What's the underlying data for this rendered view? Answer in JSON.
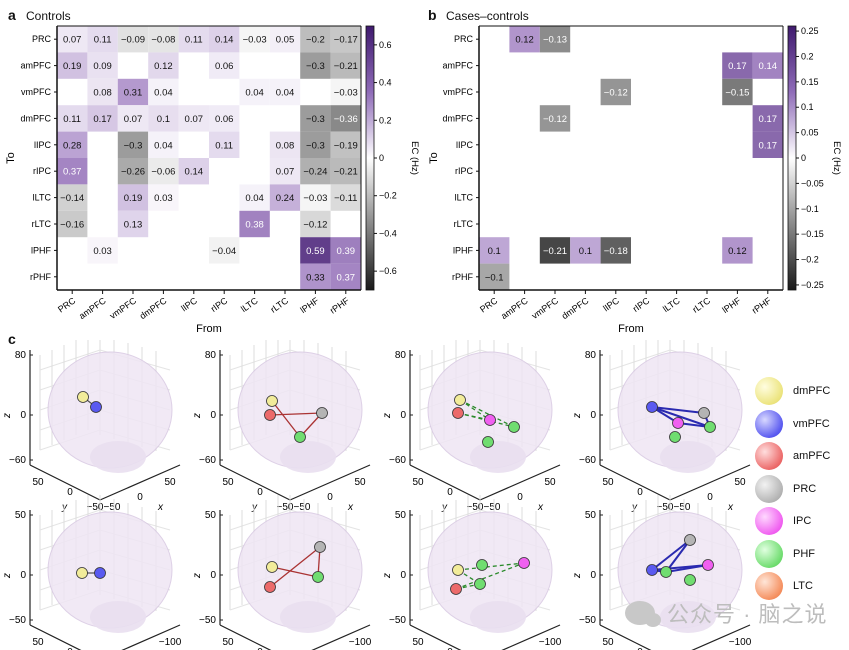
{
  "panels": {
    "a": {
      "letter": "a",
      "title": "Controls"
    },
    "b": {
      "letter": "b",
      "title": "Cases–controls"
    },
    "c": {
      "letter": "c"
    }
  },
  "chart_data": [
    {
      "type": "heatmap",
      "id": "controls",
      "title": "Controls",
      "xlabel": "From",
      "ylabel": "To",
      "rows": [
        "PRC",
        "amPFC",
        "vmPFC",
        "dmPFC",
        "lIPC",
        "rIPC",
        "lLTC",
        "rLTC",
        "lPHF",
        "rPHF"
      ],
      "cols": [
        "PRC",
        "amPFC",
        "vmPFC",
        "dmPFC",
        "lIPC",
        "rIPC",
        "lLTC",
        "rLTC",
        "lPHF",
        "rPHF"
      ],
      "values": [
        [
          0.07,
          0.11,
          -0.09,
          -0.08,
          0.11,
          0.14,
          -0.03,
          0.05,
          -0.2,
          -0.17
        ],
        [
          0.19,
          0.09,
          null,
          0.12,
          null,
          0.06,
          null,
          null,
          -0.3,
          -0.21
        ],
        [
          null,
          0.08,
          0.31,
          0.04,
          null,
          null,
          0.04,
          0.04,
          null,
          -0.03
        ],
        [
          0.11,
          0.17,
          0.07,
          0.1,
          0.07,
          0.06,
          null,
          null,
          -0.3,
          -0.36
        ],
        [
          0.28,
          null,
          -0.3,
          0.04,
          null,
          0.11,
          null,
          0.08,
          -0.3,
          -0.19
        ],
        [
          0.37,
          null,
          -0.26,
          -0.06,
          0.14,
          null,
          null,
          0.07,
          -0.24,
          -0.21
        ],
        [
          -0.14,
          null,
          0.19,
          0.03,
          null,
          null,
          0.04,
          0.24,
          -0.03,
          -0.11
        ],
        [
          -0.16,
          null,
          0.13,
          null,
          null,
          null,
          0.38,
          null,
          -0.12,
          null
        ],
        [
          null,
          0.03,
          null,
          null,
          null,
          -0.04,
          null,
          null,
          0.59,
          0.39
        ],
        [
          null,
          null,
          null,
          null,
          null,
          null,
          null,
          null,
          0.33,
          0.37
        ]
      ],
      "colorbar": {
        "label": "EC (Hz)",
        "range": [
          -0.7,
          0.7
        ],
        "ticks": [
          -0.6,
          -0.4,
          -0.2,
          0,
          0.2,
          0.4,
          0.6
        ],
        "tick_labels": [
          "−0.6",
          "−0.4",
          "−0.2",
          "0",
          "0.2",
          "0.4",
          "0.6"
        ]
      },
      "colors": {
        "positive": "#3f1a6e",
        "negative": "#1a1a1a",
        "zero": "#ffffff"
      }
    },
    {
      "type": "heatmap",
      "id": "cases-controls",
      "title": "Cases–controls",
      "xlabel": "From",
      "ylabel": "To",
      "rows": [
        "PRC",
        "amPFC",
        "vmPFC",
        "dmPFC",
        "lIPC",
        "rIPC",
        "lLTC",
        "rLTC",
        "lPHF",
        "rPHF"
      ],
      "cols": [
        "PRC",
        "amPFC",
        "vmPFC",
        "dmPFC",
        "lIPC",
        "rIPC",
        "lLTC",
        "rLTC",
        "lPHF",
        "rPHF"
      ],
      "values": [
        [
          null,
          0.12,
          -0.13,
          null,
          null,
          null,
          null,
          null,
          null,
          null
        ],
        [
          null,
          null,
          null,
          null,
          null,
          null,
          null,
          null,
          0.17,
          0.14
        ],
        [
          null,
          null,
          null,
          null,
          -0.12,
          null,
          null,
          null,
          -0.15,
          null
        ],
        [
          null,
          null,
          -0.12,
          null,
          null,
          null,
          null,
          null,
          null,
          0.17
        ],
        [
          null,
          null,
          null,
          null,
          null,
          null,
          null,
          null,
          null,
          0.17
        ],
        [
          null,
          null,
          null,
          null,
          null,
          null,
          null,
          null,
          null,
          null
        ],
        [
          null,
          null,
          null,
          null,
          null,
          null,
          null,
          null,
          null,
          null
        ],
        [
          null,
          null,
          null,
          null,
          null,
          null,
          null,
          null,
          null,
          null
        ],
        [
          0.1,
          null,
          -0.21,
          0.1,
          -0.18,
          null,
          null,
          null,
          0.12,
          null
        ],
        [
          -0.1,
          null,
          null,
          null,
          null,
          null,
          null,
          null,
          null,
          null
        ]
      ],
      "colorbar": {
        "label": "EC (Hz)",
        "range": [
          -0.26,
          0.26
        ],
        "ticks": [
          -0.25,
          -0.2,
          -0.15,
          -0.1,
          -0.05,
          0,
          0.05,
          0.1,
          0.15,
          0.2,
          0.25
        ],
        "tick_labels": [
          "−0.25",
          "−0.2",
          "−0.15",
          "−0.1",
          "−0.05",
          "0",
          "0.05",
          "0.1",
          "0.15",
          "0.2",
          "0.25"
        ]
      },
      "colors": {
        "positive": "#3f1a6e",
        "negative": "#1a1a1a",
        "zero": "#ffffff"
      }
    },
    {
      "type": "scatter",
      "id": "brain-networks",
      "description": "3D glass-brain network plots, 4 networks x 2 views",
      "view_top": {
        "zlabel": "z",
        "xlabel": "x",
        "ylabel": "y",
        "z_ticks": [
          "80",
          "0",
          "−60"
        ],
        "y_ticks": [
          "50",
          "0",
          "−50"
        ],
        "x_ticks": [
          "−50",
          "0",
          "50"
        ]
      },
      "view_bottom": {
        "zlabel": "z",
        "xlabel": "x",
        "ylabel": "y",
        "z_ticks": [
          "50",
          "0",
          "−50"
        ],
        "x_ticks": [
          "50",
          "0",
          "−50"
        ],
        "y_ticks": [
          "50",
          "0",
          "−100"
        ]
      },
      "networks": [
        {
          "nodes": [
            "dmPFC",
            "vmPFC"
          ],
          "edges": [
            [
              "dmPFC",
              "vmPFC",
              "solid"
            ]
          ]
        },
        {
          "nodes": [
            "dmPFC",
            "amPFC",
            "PRC",
            "PHF"
          ],
          "edges": [
            [
              "amPFC",
              "PRC",
              "solid"
            ],
            [
              "dmPFC",
              "PHF",
              "solid"
            ],
            [
              "PRC",
              "PHF",
              "solid"
            ]
          ]
        },
        {
          "nodes": [
            "dmPFC",
            "amPFC",
            "IPC",
            "PHF",
            "PHF"
          ],
          "edges": [
            [
              "dmPFC",
              "PHF",
              "dashed"
            ],
            [
              "amPFC",
              "IPC",
              "dashed"
            ],
            [
              "amPFC",
              "PHF",
              "dashed"
            ],
            [
              "dmPFC",
              "IPC",
              "dashed"
            ]
          ]
        },
        {
          "nodes": [
            "vmPFC",
            "IPC",
            "PHF",
            "PRC",
            "PHF"
          ],
          "edges": [
            [
              "vmPFC",
              "PRC",
              "solid"
            ],
            [
              "vmPFC",
              "PHF",
              "solid"
            ],
            [
              "vmPFC",
              "IPC",
              "solid"
            ],
            [
              "IPC",
              "PHF",
              "solid"
            ],
            [
              "PRC",
              "PHF",
              "solid"
            ]
          ]
        }
      ]
    }
  ],
  "legend": [
    {
      "label": "dmPFC",
      "color": "#f2ec9a"
    },
    {
      "label": "vmPFC",
      "color": "#5a5af0"
    },
    {
      "label": "amPFC",
      "color": "#ec6a6a"
    },
    {
      "label": "PRC",
      "color": "#b4b4b4"
    },
    {
      "label": "IPC",
      "color": "#f060f0"
    },
    {
      "label": "PHF",
      "color": "#70dd70"
    },
    {
      "label": "LTC",
      "color": "#f59060"
    }
  ],
  "watermark": "公众号 · 脑之说"
}
